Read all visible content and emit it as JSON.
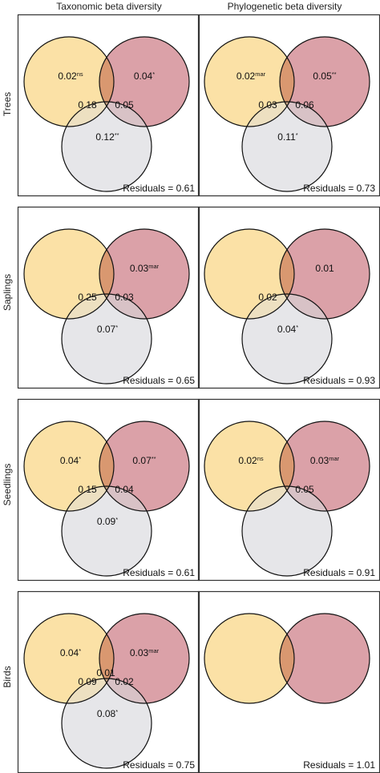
{
  "columns": [
    "Taxonomic beta diversity",
    "Phylogenetic beta diversity"
  ],
  "rows": [
    "Trees",
    "Saplings",
    "Seedlings",
    "Birds"
  ],
  "colors": {
    "circle_a": "#fbe1a6",
    "circle_b": "#dba1a8",
    "circle_c": "#e6e6e9",
    "overlap_ab": "#d99870",
    "overlap_ac": "#ede0c1",
    "overlap_bc": "#d8c2c6",
    "overlap_abc": "#c6a486"
  },
  "panels": [
    {
      "row": 0,
      "col": 0,
      "three": true,
      "a": {
        "v": "0.02",
        "s": "ns"
      },
      "b": {
        "v": "0.04",
        "s": "*"
      },
      "ac": "0.18",
      "bc": "0.05",
      "c": {
        "v": "0.12",
        "s": "**"
      },
      "abc": "",
      "residuals": "Residuals = 0.61"
    },
    {
      "row": 0,
      "col": 1,
      "three": true,
      "a": {
        "v": "0.02",
        "s": "mar"
      },
      "b": {
        "v": "0.05",
        "s": "**"
      },
      "ac": "0.03",
      "bc": "0.06",
      "c": {
        "v": "0.11",
        "s": "*"
      },
      "abc": "",
      "residuals": "Residuals = 0.73"
    },
    {
      "row": 1,
      "col": 0,
      "three": true,
      "a": {
        "v": "",
        "s": ""
      },
      "b": {
        "v": "0.03",
        "s": "mar"
      },
      "ac": "0.25",
      "bc": "0.03",
      "c": {
        "v": "0.07",
        "s": "*"
      },
      "abc": "",
      "residuals": "Residuals = 0.65"
    },
    {
      "row": 1,
      "col": 1,
      "three": true,
      "a": {
        "v": "",
        "s": ""
      },
      "b": {
        "v": "0.01",
        "s": ""
      },
      "ac": "0.02",
      "bc": "",
      "c": {
        "v": "0.04",
        "s": "*"
      },
      "abc": "",
      "residuals": "Residuals = 0.93"
    },
    {
      "row": 2,
      "col": 0,
      "three": true,
      "a": {
        "v": "0.04",
        "s": "*"
      },
      "b": {
        "v": "0.07",
        "s": "**"
      },
      "ac": "0.15",
      "bc": "0.04",
      "c": {
        "v": "0.09",
        "s": "*"
      },
      "abc": "",
      "residuals": "Residuals = 0.61"
    },
    {
      "row": 2,
      "col": 1,
      "three": true,
      "a": {
        "v": "0.02",
        "s": "ns"
      },
      "b": {
        "v": "0.03",
        "s": "mar"
      },
      "ac": "",
      "bc": "0.05",
      "c": {
        "v": "",
        "s": ""
      },
      "abc": "",
      "residuals": "Residuals = 0.91"
    },
    {
      "row": 3,
      "col": 0,
      "three": true,
      "a": {
        "v": "0.04",
        "s": "*"
      },
      "b": {
        "v": "0.03",
        "s": "mar"
      },
      "ac": "0.09",
      "bc": "0.02",
      "c": {
        "v": "0.08",
        "s": "*"
      },
      "abc": "0.01",
      "residuals": "Residuals = 0.75"
    },
    {
      "row": 3,
      "col": 1,
      "three": false,
      "a": {
        "v": "",
        "s": ""
      },
      "b": {
        "v": "",
        "s": ""
      },
      "ac": "",
      "bc": "",
      "c": {
        "v": "",
        "s": ""
      },
      "abc": "",
      "residuals": "Residuals = 1.01"
    }
  ]
}
